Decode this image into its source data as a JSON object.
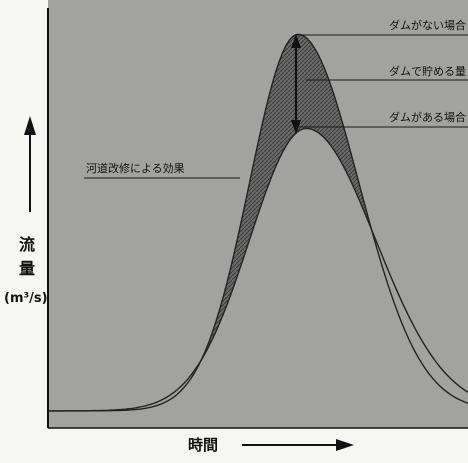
{
  "chart_data": {
    "type": "area",
    "title": "",
    "xlabel": "時間",
    "ylabel": "流量",
    "yunit": "(m³/s)",
    "grid": false,
    "series": [],
    "annotations": [
      {
        "text": "ダムがない場合"
      },
      {
        "text": "ダムで貯める量"
      },
      {
        "text": "ダムがある場合"
      },
      {
        "text": "河道改修による効果"
      }
    ]
  }
}
